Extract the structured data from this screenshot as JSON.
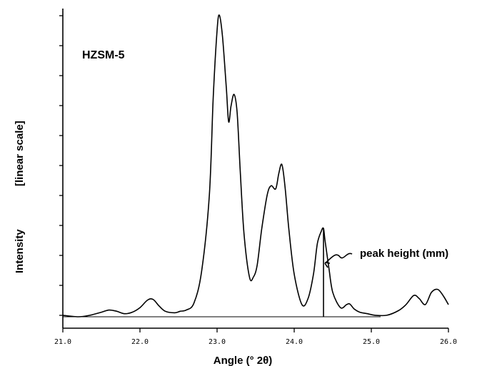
{
  "chart_data": {
    "type": "line",
    "sample_label": "HZSM-5",
    "xlabel": "Angle (° 2θ)",
    "ylabel_line1": "Intensity",
    "ylabel_line2": "[linear scale]",
    "y_scale": "linear",
    "xlim": [
      21.0,
      26.0
    ],
    "ylim": [
      0,
      100
    ],
    "x_ticks": [
      "21.0",
      "22.0",
      "23.0",
      "24.0",
      "25.0",
      "26.0"
    ],
    "grid": false,
    "legend": "none",
    "series": [
      {
        "x": [
          21.0,
          21.2,
          21.35,
          21.5,
          21.6,
          21.7,
          21.8,
          21.9,
          22.0,
          22.1,
          22.17,
          22.25,
          22.33,
          22.45,
          22.52,
          22.6,
          22.7,
          22.8,
          22.9,
          22.95,
          23.0,
          23.03,
          23.07,
          23.12,
          23.15,
          23.18,
          23.22,
          23.26,
          23.3,
          23.35,
          23.42,
          23.47,
          23.52,
          23.58,
          23.65,
          23.7,
          23.76,
          23.8,
          23.84,
          23.88,
          23.93,
          24.0,
          24.1,
          24.18,
          24.25,
          24.3,
          24.35,
          24.38,
          24.4,
          24.45,
          24.5,
          24.6,
          24.68,
          24.72,
          24.78,
          24.85,
          24.95,
          25.05,
          25.2,
          25.35,
          25.45,
          25.55,
          25.62,
          25.7,
          25.78,
          25.86,
          25.93,
          26.0
        ],
        "y": [
          0.5,
          0,
          0.5,
          1.5,
          2.2,
          1.8,
          1.0,
          1.5,
          3.0,
          5.5,
          5.7,
          3.5,
          1.8,
          1.3,
          1.8,
          2.2,
          4.5,
          15,
          40,
          72,
          94,
          99,
          92,
          75,
          64,
          69,
          73,
          67,
          48,
          27,
          13,
          13,
          17,
          29,
          40,
          43,
          42,
          47,
          50,
          43,
          29,
          14,
          4,
          6,
          14,
          24,
          28,
          29,
          25,
          16,
          8,
          3,
          4,
          4.2,
          2.5,
          1.5,
          1.0,
          0.5,
          0.5,
          2,
          4,
          7,
          6,
          4,
          8,
          9,
          7,
          4
        ]
      }
    ],
    "annotations": [
      {
        "text": "peak height (mm)",
        "x": 24.38
      }
    ]
  }
}
